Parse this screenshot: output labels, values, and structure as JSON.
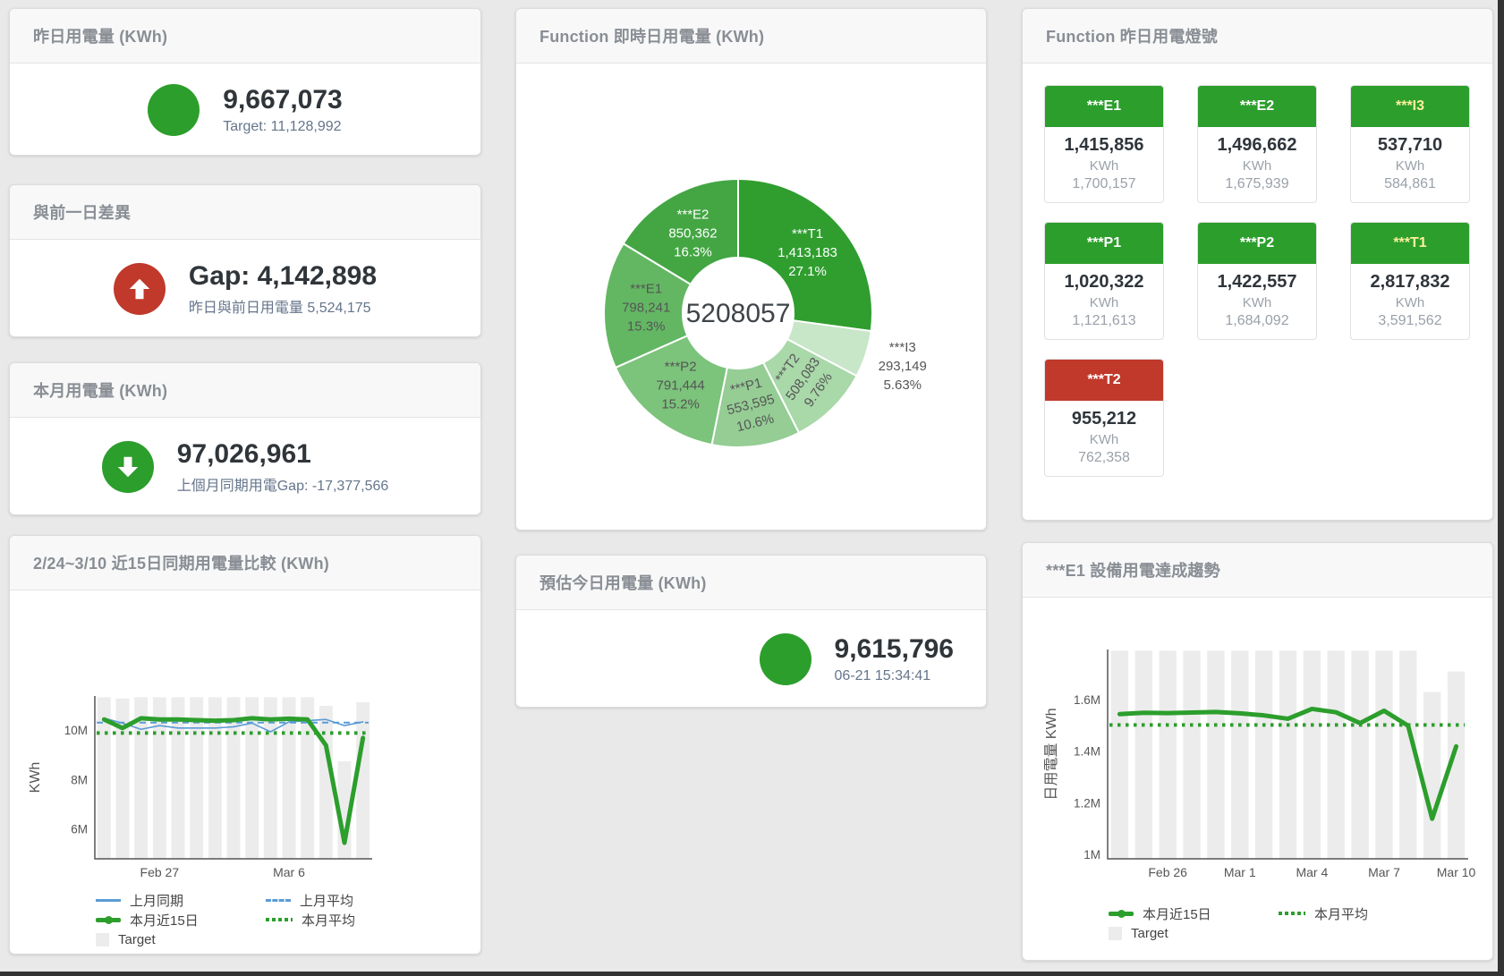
{
  "cards": {
    "yesterday": {
      "title": "昨日用電量 (KWh)",
      "value": "9,667,073",
      "subtext": "Target: 11,128,992",
      "icon_color": "#2c9e2c"
    },
    "gap_prev": {
      "title": "與前一日差異",
      "value": "Gap: 4,142,898",
      "subtext": "昨日與前日用電量 5,524,175",
      "icon_color": "#c0392b"
    },
    "month": {
      "title": "本月用電量 (KWh)",
      "value": "97,026,961",
      "subtext": "上個月同期用電Gap: -17,377,566",
      "icon_color": "#2c9e2c"
    },
    "estimate": {
      "title": "預估今日用電量 (KWh)",
      "value": "9,615,796",
      "subtext": "06-21 15:34:41",
      "icon_color": "#2c9e2c"
    },
    "donut": {
      "title": "Function 即時日用電量 (KWh)"
    },
    "lights": {
      "title": "Function 昨日用電燈號",
      "unit": "KWh",
      "status_colors": {
        "green": "#2c9e2c",
        "red": "#c0392b"
      },
      "tiles": [
        {
          "name": "***E1",
          "value": "1,415,856",
          "target": "1,700,157",
          "status": "green",
          "label_color": "#ffffff"
        },
        {
          "name": "***E2",
          "value": "1,496,662",
          "target": "1,675,939",
          "status": "green",
          "label_color": "#ffffff"
        },
        {
          "name": "***I3",
          "value": "537,710",
          "target": "584,861",
          "status": "green",
          "label_color": "#ffef9c"
        },
        {
          "name": "***P1",
          "value": "1,020,322",
          "target": "1,121,613",
          "status": "green",
          "label_color": "#ffffff"
        },
        {
          "name": "***P2",
          "value": "1,422,557",
          "target": "1,684,092",
          "status": "green",
          "label_color": "#ffffff"
        },
        {
          "name": "***T1",
          "value": "2,817,832",
          "target": "3,591,562",
          "status": "green",
          "label_color": "#ffef9c"
        },
        {
          "name": "***T2",
          "value": "955,212",
          "target": "762,358",
          "status": "red",
          "label_color": "#ffffff"
        }
      ]
    },
    "compare": {
      "title": "2/24~3/10 近15日同期用電量比較 (KWh)"
    },
    "trend": {
      "title": "***E1 設備用電達成趨勢"
    }
  },
  "chart_data": [
    {
      "id": "donut",
      "type": "pie",
      "title": "Function 即時日用電量 (KWh)",
      "center_label": "5208057",
      "segments": [
        {
          "label": "***T1",
          "value": 1413183,
          "display": "1,413,183",
          "pct": "27.1%",
          "color": "#2f9e2f",
          "text": "#ffffff"
        },
        {
          "label": "***I3",
          "value": 293149,
          "display": "293,149",
          "pct": "5.63%",
          "color": "#c8e6c8",
          "text": "#555555",
          "outside": true
        },
        {
          "label": "***T2",
          "value": 508083,
          "display": "508,083",
          "pct": "9.76%",
          "color": "#a9d8a9",
          "text": "#555555",
          "rotate": -55
        },
        {
          "label": "***P1",
          "value": 553595,
          "display": "553,595",
          "pct": "10.6%",
          "color": "#95cd95",
          "text": "#555555",
          "rotate": -14
        },
        {
          "label": "***P2",
          "value": 791444,
          "display": "791,444",
          "pct": "15.2%",
          "color": "#7cc37c",
          "text": "#555555"
        },
        {
          "label": "***E1",
          "value": 798241,
          "display": "798,241",
          "pct": "15.3%",
          "color": "#63b763",
          "text": "#555555"
        },
        {
          "label": "***E2",
          "value": 850362,
          "display": "850,362",
          "pct": "16.3%",
          "color": "#43a643",
          "text": "#ffffff"
        }
      ]
    },
    {
      "id": "compare",
      "type": "line",
      "title": "2/24~3/10 近15日同期用電量比較 (KWh)",
      "ylabel": "KWh",
      "categories": [
        "2/24",
        "2/25",
        "2/26",
        "2/27",
        "2/28",
        "3/1",
        "3/2",
        "3/3",
        "3/4",
        "3/5",
        "3/6",
        "3/7",
        "3/8",
        "3/9",
        "3/10"
      ],
      "ylim": [
        4800000,
        11400000
      ],
      "yticks": [
        {
          "v": 6000000,
          "label": "6M"
        },
        {
          "v": 8000000,
          "label": "8M"
        },
        {
          "v": 10000000,
          "label": "10M"
        }
      ],
      "xticks": [
        {
          "index": 3,
          "label": "Feb 27"
        },
        {
          "index": 10,
          "label": "Mar 6"
        }
      ],
      "target_bars": {
        "name": "Target",
        "color": "#ececec",
        "values": [
          11350000,
          11300000,
          11350000,
          11350000,
          11350000,
          11350000,
          11350000,
          11350000,
          11350000,
          11350000,
          11350000,
          11350000,
          11000000,
          8750000,
          11150000
        ]
      },
      "series": [
        {
          "name": "上月平均",
          "style": "dashed",
          "color": "#5b9bd5",
          "width": 2,
          "value": 10320000
        },
        {
          "name": "本月平均",
          "style": "dotted",
          "color": "#2c9e2c",
          "width": 4,
          "value": 9900000
        },
        {
          "name": "上月同期",
          "style": "line",
          "color": "#5b9bd5",
          "width": 1.6,
          "values": [
            10500000,
            10300000,
            10050000,
            10200000,
            10100000,
            10100000,
            10100000,
            10150000,
            10300000,
            9950000,
            10350000,
            10400000,
            10450000,
            10200000,
            10350000
          ]
        },
        {
          "name": "本月近15日",
          "style": "line",
          "color": "#2c9e2c",
          "width": 5,
          "values": [
            10450000,
            10100000,
            10500000,
            10450000,
            10450000,
            10420000,
            10400000,
            10420000,
            10500000,
            10450000,
            10480000,
            10450000,
            9400000,
            5450000,
            9700000
          ]
        }
      ],
      "legend_rows": [
        [
          "上月同期",
          "上月平均"
        ],
        [
          "本月近15日",
          "本月平均"
        ],
        [
          "Target"
        ]
      ]
    },
    {
      "id": "trend",
      "type": "line",
      "title": "***E1 設備用電達成趨勢",
      "ylabel": "日用電量 KWh",
      "categories": [
        "2/24",
        "2/25",
        "2/26",
        "2/27",
        "2/28",
        "3/1",
        "3/2",
        "3/3",
        "3/4",
        "3/5",
        "3/6",
        "3/7",
        "3/8",
        "3/9",
        "3/10"
      ],
      "ylim": [
        985000,
        1795000
      ],
      "yticks": [
        {
          "v": 1000000,
          "label": "1M"
        },
        {
          "v": 1200000,
          "label": "1.2M"
        },
        {
          "v": 1400000,
          "label": "1.4M"
        },
        {
          "v": 1600000,
          "label": "1.6M"
        }
      ],
      "xticks": [
        {
          "index": 2,
          "label": "Feb 26"
        },
        {
          "index": 5,
          "label": "Mar 1"
        },
        {
          "index": 8,
          "label": "Mar 4"
        },
        {
          "index": 11,
          "label": "Mar 7"
        },
        {
          "index": 14,
          "label": "Mar 10"
        }
      ],
      "target_bars": {
        "name": "Target",
        "color": "#ececec",
        "values": [
          1790000,
          1790000,
          1790000,
          1790000,
          1790000,
          1790000,
          1790000,
          1790000,
          1790000,
          1790000,
          1790000,
          1790000,
          1790000,
          1630000,
          1710000
        ]
      },
      "series": [
        {
          "name": "本月平均",
          "style": "dotted",
          "color": "#2c9e2c",
          "width": 4,
          "value": 1503000
        },
        {
          "name": "本月近15日",
          "style": "line",
          "color": "#2c9e2c",
          "width": 5,
          "values": [
            1545000,
            1550000,
            1549000,
            1551000,
            1553000,
            1548000,
            1540000,
            1527000,
            1565000,
            1552000,
            1510000,
            1558000,
            1500000,
            1140000,
            1420000
          ]
        }
      ],
      "legend_rows": [
        [
          "本月近15日",
          "本月平均"
        ],
        [
          "Target"
        ]
      ]
    }
  ]
}
